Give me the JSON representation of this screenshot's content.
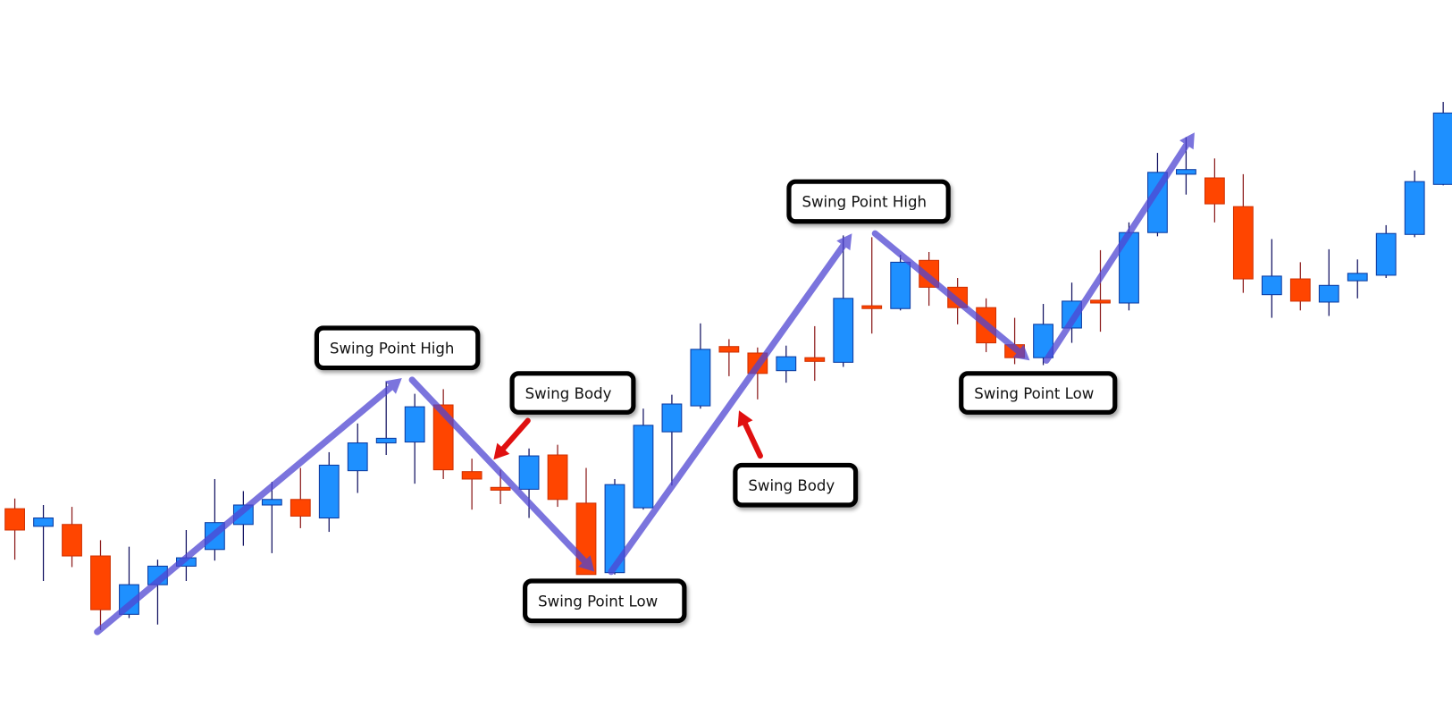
{
  "chart_data": {
    "type": "candlestick",
    "title": "",
    "colors": {
      "bullish": "#1E90FF",
      "bearish": "#FF4500",
      "bullish_wick": "#101060",
      "bearish_wick": "#8B1A1A",
      "trend_arrow": "#5046D2",
      "pointer_arrow": "#E01010"
    },
    "candles": [
      {
        "o": 214,
        "h": 225,
        "l": 159,
        "c": 191
      },
      {
        "o": 195,
        "h": 218,
        "l": 136,
        "c": 204
      },
      {
        "o": 197,
        "h": 216,
        "l": 151,
        "c": 163
      },
      {
        "o": 163,
        "h": 180,
        "l": 83,
        "c": 105
      },
      {
        "o": 100,
        "h": 173,
        "l": 96,
        "c": 132
      },
      {
        "o": 132,
        "h": 159,
        "l": 89,
        "c": 152
      },
      {
        "o": 152,
        "h": 191,
        "l": 136,
        "c": 161
      },
      {
        "o": 170,
        "h": 246,
        "l": 158,
        "c": 199
      },
      {
        "o": 197,
        "h": 233,
        "l": 174,
        "c": 218
      },
      {
        "o": 218,
        "h": 243,
        "l": 166,
        "c": 224
      },
      {
        "o": 224,
        "h": 258,
        "l": 193,
        "c": 206
      },
      {
        "o": 204,
        "h": 275,
        "l": 189,
        "c": 261
      },
      {
        "o": 255,
        "h": 306,
        "l": 231,
        "c": 285
      },
      {
        "o": 285,
        "h": 351,
        "l": 272,
        "c": 290
      },
      {
        "o": 286,
        "h": 338,
        "l": 241,
        "c": 324
      },
      {
        "o": 326,
        "h": 343,
        "l": 246,
        "c": 256
      },
      {
        "o": 254,
        "h": 268,
        "l": 213,
        "c": 246
      },
      {
        "o": 237,
        "h": 256,
        "l": 219,
        "c": 235
      },
      {
        "o": 235,
        "h": 279,
        "l": 204,
        "c": 271
      },
      {
        "o": 272,
        "h": 283,
        "l": 216,
        "c": 224
      },
      {
        "o": 220,
        "h": 258,
        "l": 143,
        "c": 143
      },
      {
        "o": 145,
        "h": 246,
        "l": 143,
        "c": 240
      },
      {
        "o": 215,
        "h": 322,
        "l": 213,
        "c": 304
      },
      {
        "o": 297,
        "h": 337,
        "l": 239,
        "c": 327
      },
      {
        "o": 325,
        "h": 414,
        "l": 322,
        "c": 386
      },
      {
        "o": 389,
        "h": 397,
        "l": 357,
        "c": 383
      },
      {
        "o": 382,
        "h": 388,
        "l": 332,
        "c": 360
      },
      {
        "o": 363,
        "h": 390,
        "l": 350,
        "c": 378
      },
      {
        "o": 377,
        "h": 411,
        "l": 352,
        "c": 373
      },
      {
        "o": 372,
        "h": 509,
        "l": 367,
        "c": 441
      },
      {
        "o": 433,
        "h": 507,
        "l": 403,
        "c": 430
      },
      {
        "o": 430,
        "h": 488,
        "l": 428,
        "c": 480
      },
      {
        "o": 482,
        "h": 491,
        "l": 433,
        "c": 453
      },
      {
        "o": 453,
        "h": 463,
        "l": 413,
        "c": 431
      },
      {
        "o": 431,
        "h": 441,
        "l": 383,
        "c": 393
      },
      {
        "o": 391,
        "h": 420,
        "l": 370,
        "c": 377
      },
      {
        "o": 377,
        "h": 435,
        "l": 369,
        "c": 413
      },
      {
        "o": 409,
        "h": 458,
        "l": 393,
        "c": 438
      },
      {
        "o": 439,
        "h": 493,
        "l": 405,
        "c": 436
      },
      {
        "o": 436,
        "h": 523,
        "l": 428,
        "c": 512
      },
      {
        "o": 512,
        "h": 598,
        "l": 508,
        "c": 577
      },
      {
        "o": 575,
        "h": 615,
        "l": 553,
        "c": 580
      },
      {
        "o": 571,
        "h": 592,
        "l": 523,
        "c": 543
      },
      {
        "o": 540,
        "h": 575,
        "l": 447,
        "c": 462
      },
      {
        "o": 445,
        "h": 505,
        "l": 420,
        "c": 465
      },
      {
        "o": 462,
        "h": 480,
        "l": 428,
        "c": 438
      },
      {
        "o": 437,
        "h": 494,
        "l": 422,
        "c": 455
      },
      {
        "o": 460,
        "h": 483,
        "l": 441,
        "c": 468
      },
      {
        "o": 466,
        "h": 520,
        "l": 463,
        "c": 511
      },
      {
        "o": 510,
        "h": 579,
        "l": 507,
        "c": 567
      },
      {
        "o": 564,
        "h": 653,
        "l": 563,
        "c": 641
      }
    ],
    "annotations": [
      {
        "text": "Swing Point High",
        "candle": 14
      },
      {
        "text": "Swing Body",
        "candle": 17
      },
      {
        "text": "Swing Point Low",
        "candle": 21
      },
      {
        "text": "Swing Body",
        "candle": 26
      },
      {
        "text": "Swing Point High",
        "candle": 30
      },
      {
        "text": "Swing Point Low",
        "candle": 36
      }
    ]
  }
}
